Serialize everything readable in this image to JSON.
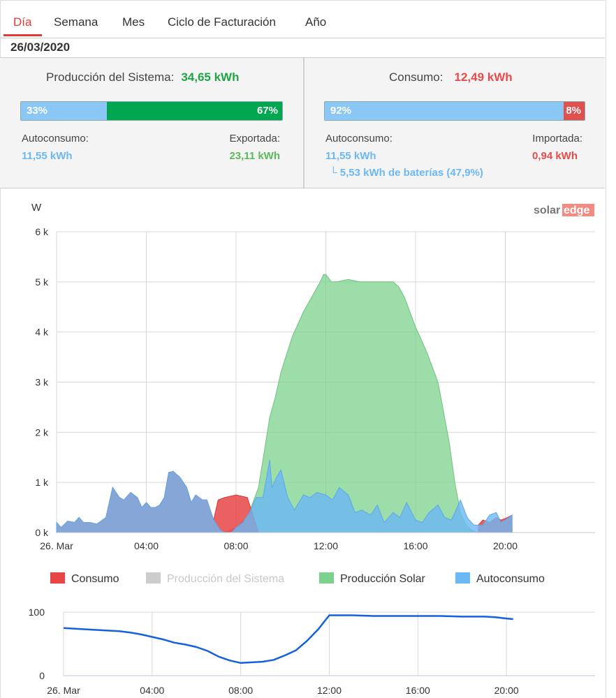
{
  "tabs": [
    "Día",
    "Semana",
    "Mes",
    "Ciclo de Facturación",
    "Año"
  ],
  "date": "26/03/2020",
  "production": {
    "title": "Producción del Sistema:",
    "value": "34,65 kWh",
    "self_pct": 33,
    "self_label": "33%",
    "export_pct": 67,
    "export_label": "67%",
    "self_title": "Autoconsumo:",
    "self_value": "11,55 kWh",
    "export_title": "Exportada:",
    "export_value": "23,11 kWh"
  },
  "consumption": {
    "title": "Consumo:",
    "value": "12,49 kWh",
    "self_pct": 92,
    "self_label": "92%",
    "import_pct": 8,
    "import_label": "8%",
    "self_title": "Autoconsumo:",
    "self_value": "11,55 kWh",
    "battery": "└ 5,53 kWh de baterías (47,9%)",
    "import_title": "Importada:",
    "import_value": "0,94 kWh"
  },
  "colors": {
    "green": "#1fa544",
    "red": "#e84b4b",
    "blue": "#8ac7f5",
    "bar_green": "#00a650",
    "bar_red": "#e0504d",
    "consumo": "#e84545",
    "produccion_sistema": "#cccccc",
    "solar": "#7bd18d",
    "autoconsumo": "#6cb8f5",
    "soc_line": "#1560e0"
  },
  "logo": {
    "text_a": "solar",
    "text_b": "edge"
  },
  "chart_data": [
    {
      "type": "area",
      "ylabel": "W",
      "ylim": [
        0,
        6000
      ],
      "yticks": [
        0,
        1000,
        2000,
        3000,
        4000,
        5000,
        6000
      ],
      "ytick_labels": [
        "0 k",
        "1 k",
        "2 k",
        "3 k",
        "4 k",
        "5 k",
        "6 k"
      ],
      "xlim": [
        0,
        24
      ],
      "xticks": [
        0,
        4,
        8,
        12,
        16,
        20
      ],
      "xtick_labels": [
        "26. Mar",
        "04:00",
        "08:00",
        "12:00",
        "16:00",
        "20:00"
      ],
      "legend": [
        {
          "name": "Consumo",
          "color": "#e84545",
          "disabled": false
        },
        {
          "name": "Producción del Sistema",
          "color": "#cccccc",
          "disabled": true
        },
        {
          "name": "Producción Solar",
          "color": "#7bd18d",
          "disabled": false
        },
        {
          "name": "Autoconsumo",
          "color": "#6cb8f5",
          "disabled": false
        }
      ],
      "series": [
        {
          "name": "Producción Solar",
          "x": [
            7.5,
            8.0,
            8.5,
            9.0,
            9.25,
            9.5,
            9.75,
            10.0,
            10.5,
            11.0,
            11.5,
            11.75,
            11.9,
            12.0,
            12.25,
            12.5,
            13.0,
            13.5,
            14.0,
            14.5,
            15.0,
            15.25,
            15.5,
            16.0,
            16.5,
            17.0,
            17.25,
            17.5,
            17.75,
            18.0,
            18.25,
            18.5,
            18.75
          ],
          "values": [
            0,
            100,
            300,
            900,
            1600,
            2300,
            2700,
            3200,
            3900,
            4400,
            4800,
            5000,
            5150,
            5150,
            5000,
            5000,
            5050,
            5000,
            5000,
            5000,
            5000,
            4900,
            4700,
            4100,
            3600,
            3000,
            2400,
            1800,
            1000,
            400,
            150,
            50,
            0
          ]
        },
        {
          "name": "Consumo",
          "x": [
            0,
            0.2,
            0.5,
            0.8,
            1.0,
            1.2,
            1.5,
            1.8,
            2.2,
            2.5,
            2.8,
            3.0,
            3.3,
            3.6,
            3.8,
            4.0,
            4.2,
            4.4,
            4.6,
            4.8,
            5.0,
            5.2,
            5.5,
            5.8,
            6.0,
            6.2,
            6.5,
            6.7,
            7.0,
            7.2,
            7.5,
            8.0,
            8.5,
            9.0,
            9.5
          ],
          "values": [
            200,
            100,
            230,
            200,
            300,
            200,
            200,
            170,
            300,
            900,
            700,
            650,
            800,
            700,
            500,
            600,
            500,
            500,
            550,
            700,
            1200,
            1220,
            1100,
            900,
            600,
            750,
            650,
            650,
            250,
            650,
            700,
            750,
            700,
            0,
            0
          ]
        },
        {
          "name": "Consumo (evening)",
          "x": [
            18.8,
            19.0,
            19.3,
            19.6,
            19.8,
            20.0,
            20.3
          ],
          "values": [
            150,
            250,
            200,
            300,
            250,
            280,
            350
          ]
        },
        {
          "name": "Autoconsumo",
          "x": [
            0,
            0.2,
            0.5,
            0.8,
            1.0,
            1.2,
            1.5,
            1.8,
            2.2,
            2.5,
            2.8,
            3.0,
            3.3,
            3.6,
            3.8,
            4.0,
            4.2,
            4.4,
            4.6,
            4.8,
            5.0,
            5.2,
            5.5,
            5.8,
            6.0,
            6.2,
            6.5,
            6.7,
            7.0,
            7.3,
            7.5,
            7.8,
            8.0,
            8.3,
            8.6,
            8.9,
            9.2,
            9.5,
            9.6,
            9.8,
            10.0,
            10.3,
            10.6,
            11.0,
            11.3,
            11.6,
            12.0,
            12.3,
            12.6,
            13.0,
            13.3,
            13.6,
            14.0,
            14.3,
            14.6,
            15.0,
            15.3,
            15.6,
            16.0,
            16.3,
            16.6,
            17.0,
            17.3,
            17.6,
            18.0,
            18.3,
            18.6,
            19.0,
            19.3,
            19.6,
            19.8,
            20.0,
            20.3
          ],
          "values": [
            200,
            100,
            230,
            200,
            300,
            200,
            200,
            170,
            300,
            900,
            700,
            650,
            800,
            700,
            500,
            600,
            500,
            500,
            550,
            700,
            1200,
            1220,
            1100,
            900,
            600,
            750,
            650,
            650,
            250,
            50,
            0,
            0,
            100,
            200,
            400,
            700,
            700,
            1450,
            900,
            1100,
            1250,
            700,
            450,
            750,
            700,
            800,
            750,
            650,
            900,
            750,
            400,
            450,
            350,
            550,
            200,
            400,
            300,
            600,
            250,
            200,
            400,
            550,
            300,
            250,
            650,
            300,
            150,
            150,
            350,
            400,
            200,
            250,
            350
          ]
        }
      ]
    },
    {
      "type": "line",
      "ylim": [
        0,
        100
      ],
      "yticks": [
        0,
        100
      ],
      "ytick_labels": [
        "0",
        "100"
      ],
      "xlim": [
        0,
        24
      ],
      "xticks": [
        0,
        4,
        8,
        12,
        16,
        20
      ],
      "xtick_labels": [
        "26. Mar",
        "04:00",
        "08:00",
        "12:00",
        "16:00",
        "20:00"
      ],
      "series": [
        {
          "name": "battery",
          "x": [
            0,
            1,
            2,
            2.5,
            3,
            3.5,
            4,
            4.5,
            5,
            5.5,
            6,
            6.5,
            7,
            7.5,
            8,
            8.5,
            9,
            9.5,
            10,
            10.5,
            11,
            11.5,
            12,
            12.5,
            13,
            14,
            15,
            16,
            17,
            18,
            19,
            19.5,
            20,
            20.3
          ],
          "values": [
            75,
            73,
            71,
            70,
            68,
            65,
            61,
            57,
            52,
            49,
            45,
            39,
            30,
            24,
            20,
            21,
            22,
            25,
            32,
            40,
            55,
            73,
            95,
            95,
            95,
            94,
            94,
            94,
            94,
            93,
            93,
            92,
            90,
            89
          ]
        }
      ]
    }
  ]
}
